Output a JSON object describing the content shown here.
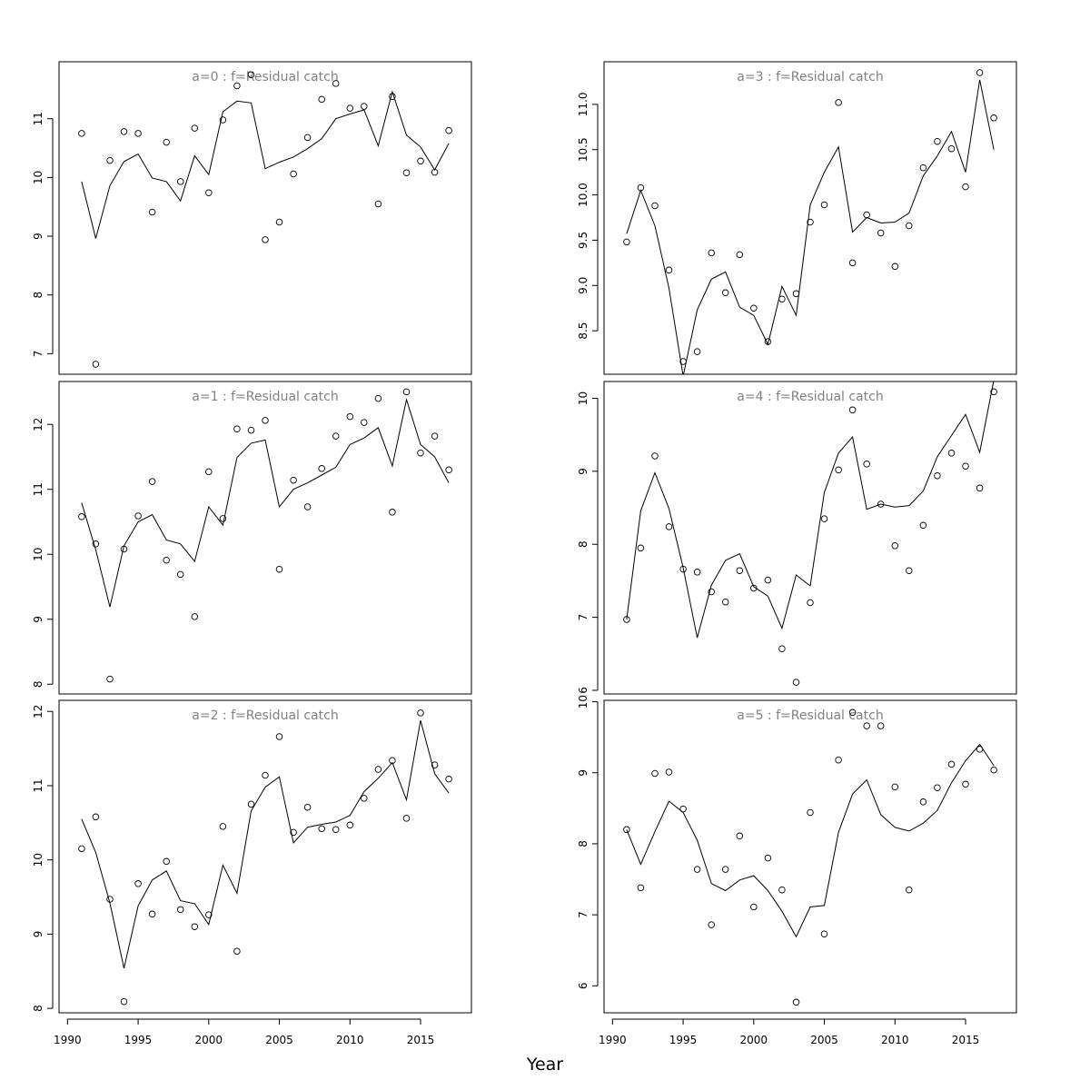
{
  "figure": {
    "xlabel": "Year"
  },
  "chart_data": [
    {
      "type": "line",
      "title": "a=0  :  f=Residual catch",
      "x": [
        1991,
        1992,
        1993,
        1994,
        1995,
        1996,
        1997,
        1998,
        1999,
        2000,
        2001,
        2002,
        2003,
        2004,
        2005,
        2006,
        2007,
        2008,
        2009,
        2010,
        2011,
        2012,
        2013,
        2014,
        2015,
        2016,
        2017
      ],
      "yticks": [
        7,
        8,
        9,
        10,
        11
      ],
      "ylim": [
        6.65,
        11.97
      ],
      "series": [
        {
          "mode": "points",
          "values": [
            10.75,
            6.82,
            10.29,
            10.78,
            10.75,
            9.41,
            10.6,
            9.93,
            10.84,
            9.74,
            10.98,
            11.56,
            11.75,
            8.94,
            9.24,
            10.06,
            10.68,
            11.33,
            11.6,
            11.18,
            11.21,
            9.55,
            11.38,
            10.08,
            10.28,
            10.09,
            10.8
          ]
        },
        {
          "mode": "line",
          "values": [
            9.93,
            8.96,
            9.86,
            10.27,
            10.4,
            9.99,
            9.93,
            9.6,
            10.37,
            10.05,
            11.12,
            11.3,
            11.27,
            10.15,
            10.26,
            10.35,
            10.49,
            10.66,
            11.0,
            11.08,
            11.15,
            10.54,
            11.46,
            10.72,
            10.52,
            10.13,
            10.58
          ]
        }
      ]
    },
    {
      "type": "line",
      "title": "a=1  :  f=Residual catch",
      "x": [
        1991,
        1992,
        1993,
        1994,
        1995,
        1996,
        1997,
        1998,
        1999,
        2000,
        2001,
        2002,
        2003,
        2004,
        2005,
        2006,
        2007,
        2008,
        2009,
        2010,
        2011,
        2012,
        2013,
        2014,
        2015,
        2016,
        2017
      ],
      "yticks": [
        8,
        9,
        10,
        11,
        12
      ],
      "ylim": [
        7.85,
        12.66
      ],
      "series": [
        {
          "mode": "points",
          "values": [
            10.58,
            10.16,
            8.08,
            10.08,
            10.59,
            11.12,
            9.91,
            9.69,
            9.04,
            11.27,
            10.55,
            11.93,
            11.91,
            12.06,
            9.77,
            11.14,
            10.73,
            11.32,
            11.82,
            12.12,
            12.03,
            12.4,
            10.65,
            12.5,
            11.56,
            11.82,
            11.3
          ]
        },
        {
          "mode": "line",
          "values": [
            10.79,
            10.07,
            9.19,
            10.13,
            10.5,
            10.61,
            10.22,
            10.16,
            9.89,
            10.73,
            10.45,
            11.49,
            11.71,
            11.76,
            10.73,
            11.0,
            11.1,
            11.22,
            11.34,
            11.69,
            11.79,
            11.95,
            11.36,
            12.38,
            11.69,
            11.5,
            11.1
          ]
        }
      ]
    },
    {
      "type": "line",
      "title": "a=2  :  f=Residual catch",
      "x": [
        1991,
        1992,
        1993,
        1994,
        1995,
        1996,
        1997,
        1998,
        1999,
        2000,
        2001,
        2002,
        2003,
        2004,
        2005,
        2006,
        2007,
        2008,
        2009,
        2010,
        2011,
        2012,
        2013,
        2014,
        2015,
        2016,
        2017
      ],
      "yticks": [
        8,
        9,
        10,
        11,
        12
      ],
      "ylim": [
        7.94,
        12.15
      ],
      "series": [
        {
          "mode": "points",
          "values": [
            10.15,
            10.58,
            9.47,
            8.09,
            9.68,
            9.27,
            9.98,
            9.33,
            9.1,
            9.26,
            10.45,
            8.77,
            10.75,
            11.14,
            11.66,
            10.37,
            10.71,
            10.42,
            10.41,
            10.47,
            10.83,
            11.22,
            11.34,
            10.56,
            11.98,
            11.28,
            11.09
          ]
        },
        {
          "mode": "line",
          "values": [
            10.55,
            10.1,
            9.42,
            8.54,
            9.38,
            9.73,
            9.85,
            9.45,
            9.41,
            9.13,
            9.93,
            9.55,
            10.66,
            10.98,
            11.12,
            10.23,
            10.44,
            10.48,
            10.51,
            10.6,
            10.92,
            11.1,
            11.31,
            10.81,
            11.88,
            11.16,
            10.9
          ]
        }
      ]
    },
    {
      "type": "line",
      "title": "a=3  :  f=Residual catch",
      "x": [
        1991,
        1992,
        1993,
        1994,
        1995,
        1996,
        1997,
        1998,
        1999,
        2000,
        2001,
        2002,
        2003,
        2004,
        2005,
        2006,
        2007,
        2008,
        2009,
        2010,
        2011,
        2012,
        2013,
        2014,
        2015,
        2016,
        2017
      ],
      "yticks": [
        8.5,
        9.0,
        9.5,
        10.0,
        10.5,
        11.0
      ],
      "ytick_labels": [
        "8.5",
        "9.0",
        "9.5",
        "10.0",
        "10.5",
        "11.0"
      ],
      "ylim": [
        8.02,
        11.47
      ],
      "series": [
        {
          "mode": "points",
          "values": [
            9.48,
            10.08,
            9.88,
            9.17,
            8.16,
            8.27,
            9.36,
            8.92,
            9.34,
            8.75,
            8.38,
            8.85,
            8.91,
            9.7,
            9.89,
            11.02,
            9.25,
            9.78,
            9.58,
            9.21,
            9.66,
            10.3,
            10.59,
            10.51,
            10.09,
            11.35,
            10.85
          ]
        },
        {
          "mode": "line",
          "values": [
            9.57,
            10.05,
            9.66,
            8.97,
            8.0,
            8.73,
            9.07,
            9.15,
            8.76,
            8.67,
            8.35,
            8.99,
            8.67,
            9.89,
            10.25,
            10.53,
            9.59,
            9.75,
            9.69,
            9.7,
            9.8,
            10.21,
            10.43,
            10.7,
            10.25,
            11.27,
            10.5
          ]
        }
      ]
    },
    {
      "type": "line",
      "title": "a=4  :  f=Residual catch",
      "x": [
        1991,
        1992,
        1993,
        1994,
        1995,
        1996,
        1997,
        1998,
        1999,
        2000,
        2001,
        2002,
        2003,
        2004,
        2005,
        2006,
        2007,
        2008,
        2009,
        2010,
        2011,
        2012,
        2013,
        2014,
        2015,
        2016,
        2017
      ],
      "yticks": [
        6,
        7,
        8,
        9,
        10
      ],
      "ylim": [
        5.95,
        10.23
      ],
      "series": [
        {
          "mode": "points",
          "values": [
            6.97,
            7.95,
            9.21,
            8.24,
            7.66,
            7.62,
            7.35,
            7.21,
            7.64,
            7.4,
            7.51,
            6.57,
            6.11,
            7.2,
            8.35,
            9.02,
            9.84,
            9.1,
            8.55,
            7.98,
            7.64,
            8.26,
            8.94,
            9.25,
            9.07,
            8.77,
            10.09
          ]
        },
        {
          "mode": "line",
          "values": [
            6.97,
            8.46,
            8.98,
            8.49,
            7.68,
            6.72,
            7.44,
            7.78,
            7.87,
            7.42,
            7.29,
            6.85,
            7.58,
            7.43,
            8.71,
            9.25,
            9.47,
            8.48,
            8.55,
            8.51,
            8.53,
            8.73,
            9.2,
            9.49,
            9.78,
            9.26,
            10.25
          ]
        }
      ]
    },
    {
      "type": "line",
      "title": "a=5  :  f=Residual catch",
      "x": [
        1991,
        1992,
        1993,
        1994,
        1995,
        1996,
        1997,
        1998,
        1999,
        2000,
        2001,
        2002,
        2003,
        2004,
        2005,
        2006,
        2007,
        2008,
        2009,
        2010,
        2011,
        2012,
        2013,
        2014,
        2015,
        2016,
        2017
      ],
      "yticks": [
        6,
        7,
        8,
        9,
        10
      ],
      "ytick_labels": [
        "6",
        "7",
        "8",
        "9",
        "10"
      ],
      "ylim": [
        5.62,
        10.02
      ],
      "series": [
        {
          "mode": "points",
          "values": [
            8.2,
            7.38,
            8.99,
            9.01,
            8.49,
            7.64,
            6.86,
            7.64,
            8.11,
            7.11,
            7.8,
            7.35,
            5.77,
            8.44,
            6.73,
            9.18,
            9.85,
            9.66,
            9.66,
            8.8,
            7.35,
            8.59,
            8.79,
            9.12,
            8.84,
            9.33,
            9.04
          ]
        },
        {
          "mode": "line",
          "values": [
            8.2,
            7.71,
            8.17,
            8.6,
            8.44,
            8.05,
            7.44,
            7.34,
            7.49,
            7.55,
            7.34,
            7.05,
            6.69,
            7.11,
            7.13,
            8.16,
            8.7,
            8.9,
            8.41,
            8.23,
            8.18,
            8.29,
            8.47,
            8.86,
            9.17,
            9.4,
            9.1
          ]
        }
      ]
    }
  ],
  "x_axis": {
    "ticks": [
      1990,
      1995,
      2000,
      2005,
      2010,
      2015
    ],
    "xlim": [
      1989.4,
      2018.6
    ]
  }
}
